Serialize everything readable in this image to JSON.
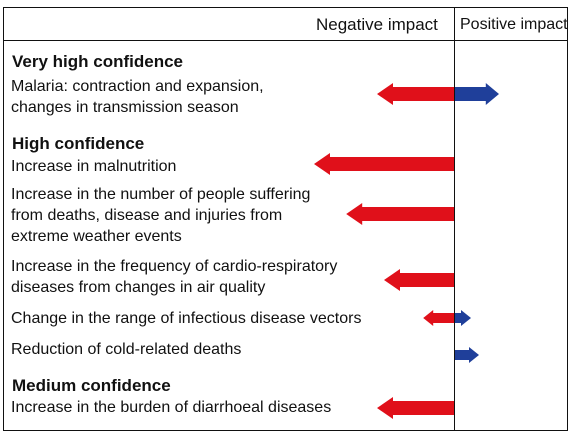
{
  "header": {
    "negative": "Negative impact",
    "positive": "Positive impact"
  },
  "sections": [
    {
      "title": "Very high confidence",
      "items": [
        {
          "lines": [
            "Malaria: contraction and expansion,",
            "changes in transmission season"
          ],
          "negative": 0.55,
          "positive": 0.55
        }
      ]
    },
    {
      "title": "High confidence",
      "items": [
        {
          "lines": [
            "Increase in malnutrition"
          ],
          "negative": 1.0,
          "positive": 0
        },
        {
          "lines": [
            "Increase in the number of people suffering",
            "from deaths, disease and injuries from",
            "extreme weather events"
          ],
          "negative": 0.77,
          "positive": 0
        },
        {
          "lines": [
            "Increase in the frequency of cardio-respiratory",
            "diseases from changes in air quality"
          ],
          "negative": 0.5,
          "positive": 0
        },
        {
          "lines": [
            "Change in the range of infectious disease vectors"
          ],
          "negative": 0.22,
          "positive": 0.2
        },
        {
          "lines": [
            "Reduction of cold-related deaths"
          ],
          "negative": 0,
          "positive": 0.3
        }
      ]
    },
    {
      "title": "Medium confidence",
      "items": [
        {
          "lines": [
            "Increase in the burden of diarrhoeal diseases"
          ],
          "negative": 0.55,
          "positive": 0
        }
      ]
    }
  ],
  "colors": {
    "negative": "#e0101a",
    "positive": "#1f3f9a",
    "line": "#111111"
  }
}
